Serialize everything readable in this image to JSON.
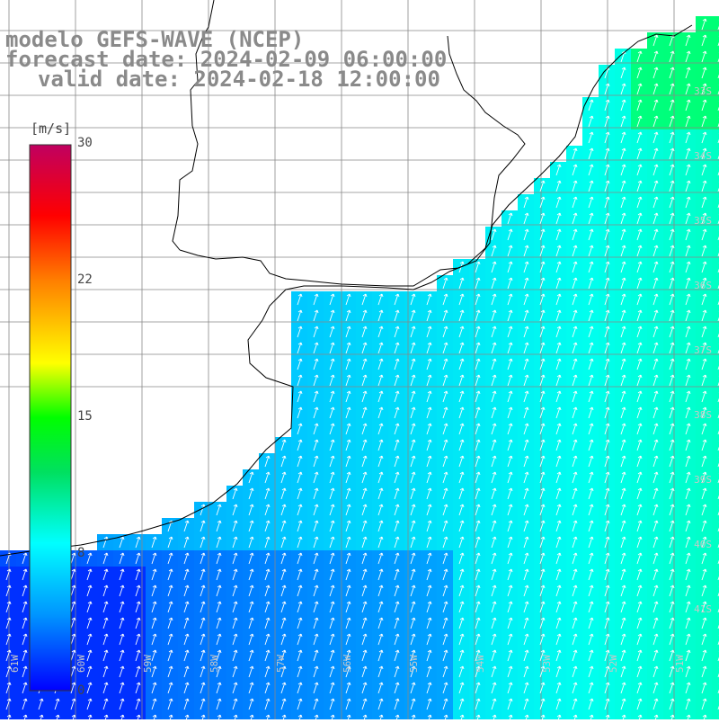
{
  "title": {
    "line1": "modelo GEFS-WAVE (NCEP)",
    "line2": "forecast date: 2024-02-09 06:00:00",
    "line3": "valid date: 2024-02-18 12:00:00"
  },
  "colorbar": {
    "units": "[m/s]",
    "ticks": [
      "30",
      "22",
      "15",
      "8",
      "0"
    ],
    "tick_values": [
      30,
      22,
      15,
      8,
      0
    ],
    "range": [
      0,
      30
    ],
    "colors": [
      "#0000ff",
      "#0096ff",
      "#00ffff",
      "#00ff00",
      "#ffff00",
      "#ff8000",
      "#ff0000",
      "#c00060"
    ]
  },
  "lat_labels": [
    "33S",
    "34S",
    "35S",
    "36S",
    "37S",
    "38S",
    "39S",
    "40S",
    "41S"
  ],
  "lon_labels": [
    "61W",
    "60W",
    "59W",
    "58W",
    "57W",
    "56W",
    "55W",
    "54W",
    "53W",
    "52W",
    "51W"
  ],
  "colors": {
    "land": "#ffffff",
    "grid": "#888888",
    "coast": "#000000",
    "title": "#8a8a8a",
    "arrows": "#ffffff"
  }
}
